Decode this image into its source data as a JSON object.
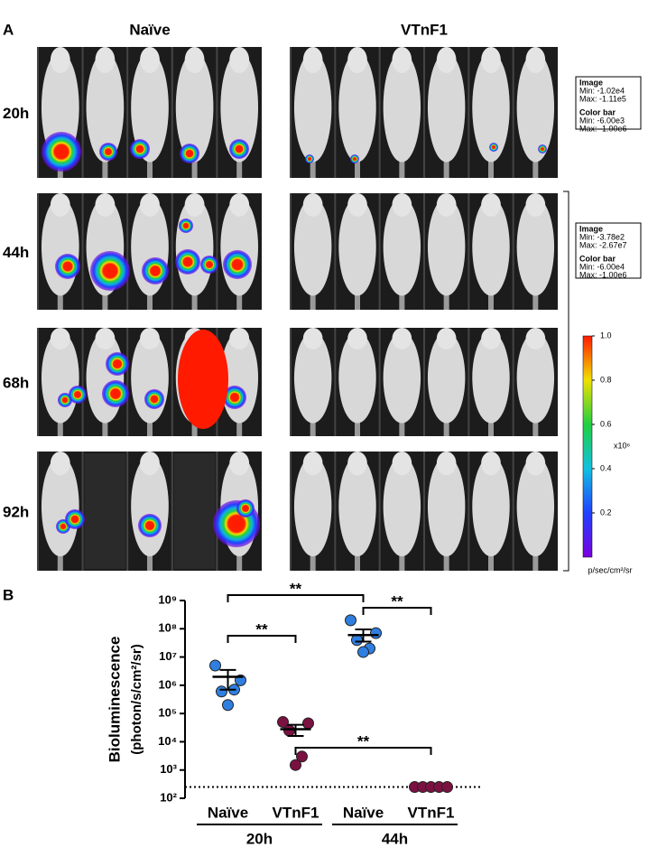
{
  "panel_a": {
    "label": "A",
    "columns": [
      "Naïve",
      "VTnF1"
    ],
    "rows": [
      "20h",
      "44h",
      "68h",
      "92h"
    ],
    "info_boxes": [
      [
        "Image",
        "Min: -1.02e4",
        "Max: -1.11e5",
        "Color bar",
        "Min: -6.00e3",
        "Max: -1.00e6"
      ],
      [
        "Image",
        "Min: -3.78e2",
        "Max: -2.67e7",
        "Color bar",
        "Min: -6.00e4",
        "Max: -1.00e6"
      ]
    ],
    "colorbar": {
      "lim": [
        0,
        1
      ],
      "ticks": [
        {
          "value": 1,
          "label": "1.0"
        },
        0.8,
        0.6,
        0.4,
        0.2
      ],
      "multiplier": "x10⁶",
      "unit": "p/sec/cm²/sr"
    }
  },
  "chart_data": {
    "type": "scatter",
    "panel_label": "B",
    "y_label": "Bioluminescence",
    "y_unit": "(photon/s/cm²/sr)",
    "categories": [
      "Naïve",
      "VTnF1",
      "Naïve",
      "VTnF1"
    ],
    "groups": [
      "20h",
      "44h"
    ],
    "points": [
      [
        5000000,
        1500000,
        600000,
        700000,
        200000
      ],
      [
        50000,
        45000,
        25000,
        3000,
        1500
      ],
      [
        200000000,
        70000000,
        40000000,
        20000000,
        15000000
      ],
      [
        250,
        250,
        250,
        250,
        250
      ]
    ],
    "means": [
      2000000,
      28000,
      60000000,
      null
    ],
    "sem": [
      [
        700000,
        3500000
      ],
      [
        16000,
        40000
      ],
      [
        35000000,
        95000000
      ],
      null
    ],
    "point_colors": [
      "#2f7fe0",
      "#7b1141",
      "#2f7fe0",
      "#7b1141"
    ],
    "detection_limit": 250,
    "log_scale": true,
    "ylim": [
      100,
      1000000000
    ],
    "yticks": [
      {
        "value": 100,
        "label": "10²"
      },
      {
        "value": 1000,
        "label": "10³"
      },
      {
        "value": 10000,
        "label": "10⁴"
      },
      {
        "value": 100000,
        "label": "10⁵"
      },
      {
        "value": 1000000,
        "label": "10⁶"
      },
      {
        "value": 10000000,
        "label": "10⁷"
      },
      {
        "value": 100000000,
        "label": "10⁸"
      },
      {
        "value": 1000000000,
        "label": "10⁹"
      }
    ],
    "annotations": [
      {
        "from": 0,
        "to": 2,
        "label": "**"
      },
      {
        "from": 2,
        "to": 3,
        "label": "**"
      },
      {
        "from": 0,
        "to": 1,
        "label": "**"
      },
      {
        "from": 1,
        "to": 3,
        "label": "**"
      }
    ]
  }
}
